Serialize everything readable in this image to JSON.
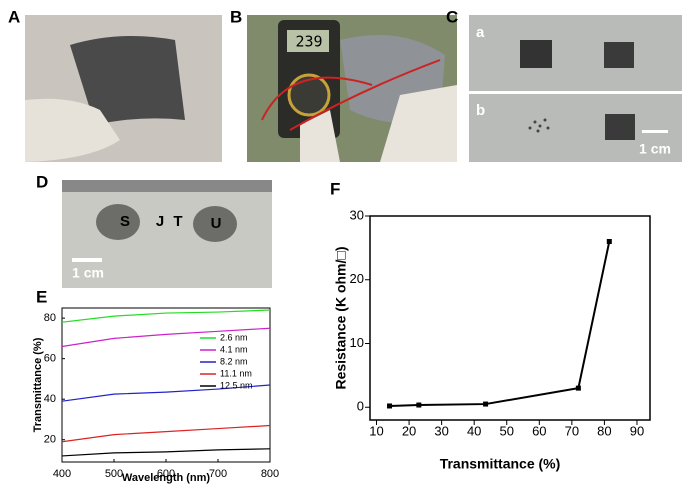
{
  "panels": {
    "labels": [
      "A",
      "B",
      "C",
      "D",
      "E",
      "F"
    ],
    "meter_reading": "239",
    "c_sublabels": [
      "a",
      "b"
    ],
    "c_scale": "1 cm",
    "d_letters": [
      "S",
      "J",
      "T",
      "U"
    ],
    "d_scale": "1 cm"
  },
  "chart_data": [
    {
      "type": "line",
      "x_label": "Wavelength (nm)",
      "y_label": "Transmittance (%)",
      "x": [
        400,
        500,
        600,
        700,
        800
      ],
      "series": [
        {
          "name": "2.6 nm",
          "color": "#22dd22",
          "values": [
            78,
            81,
            82.5,
            83,
            84
          ]
        },
        {
          "name": "4.1 nm",
          "color": "#cc22cc",
          "values": [
            66,
            70,
            72,
            73.5,
            75
          ]
        },
        {
          "name": "8.2 nm",
          "color": "#2222cc",
          "values": [
            39,
            42.5,
            43.5,
            45,
            47
          ]
        },
        {
          "name": "11.1 nm",
          "color": "#dd2222",
          "values": [
            19,
            22.5,
            24,
            25.5,
            27
          ]
        },
        {
          "name": "12.5 nm",
          "color": "#000000",
          "values": [
            12,
            13.5,
            14,
            15,
            15.5
          ]
        }
      ],
      "xlim": [
        400,
        800
      ],
      "xticks": [
        400,
        500,
        600,
        700,
        800
      ],
      "ylim": [
        9,
        85
      ],
      "yticks": [
        20,
        40,
        60,
        80
      ],
      "legend": "upper-right"
    },
    {
      "type": "line",
      "x_label": "Transmittance (%)",
      "y_label": "Resistance (K ohm/□)",
      "x": [
        14,
        23,
        43.5,
        72,
        81.5
      ],
      "values": [
        0.2,
        0.35,
        0.5,
        3,
        26
      ],
      "color": "#000000",
      "markers": true,
      "xlim": [
        8,
        94
      ],
      "xticks": [
        10,
        20,
        30,
        40,
        50,
        60,
        70,
        80,
        90
      ],
      "ylim": [
        -2,
        30
      ],
      "yticks": [
        0,
        10,
        20,
        30
      ]
    }
  ]
}
